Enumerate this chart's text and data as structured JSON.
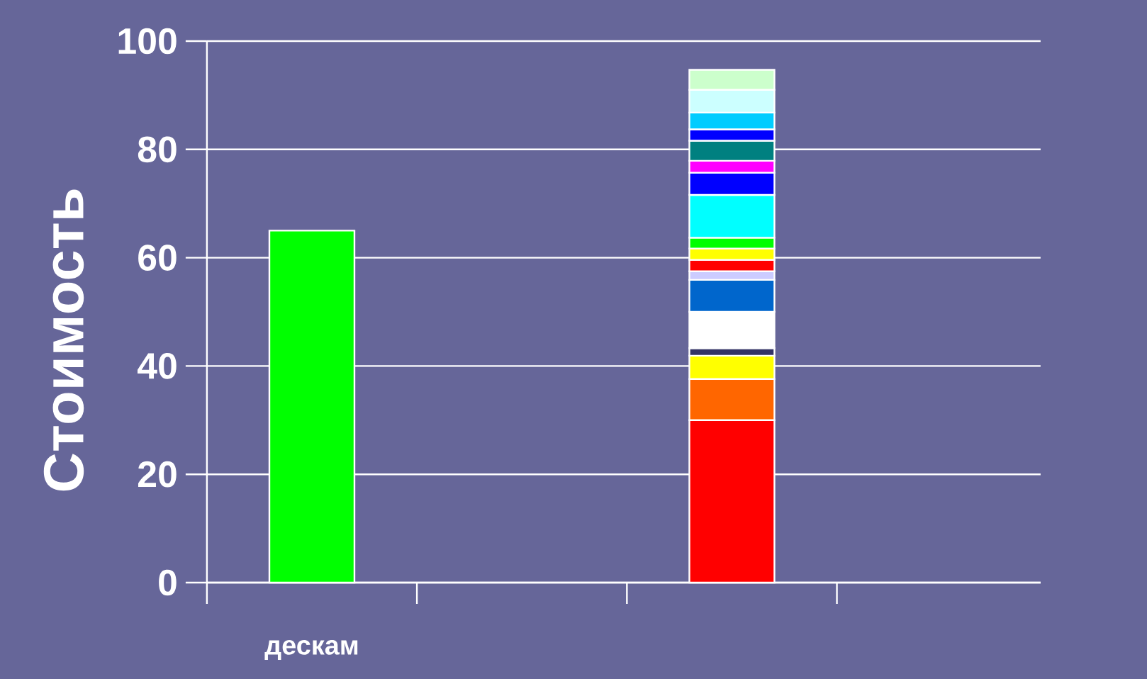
{
  "chart_data": {
    "type": "bar",
    "stacked": true,
    "ylabel": "Стоимость",
    "categories": [
      "дескам",
      null,
      null,
      null
    ],
    "ylim": [
      0,
      100
    ],
    "yticks": [
      0,
      20,
      40,
      60,
      80,
      100
    ],
    "grid": "y",
    "series": [
      {
        "color": "#00ff00",
        "values": [
          65,
          null,
          null,
          null
        ]
      },
      {
        "color": "#ff0000",
        "values": [
          null,
          null,
          30,
          null
        ]
      },
      {
        "color": "#ff6600",
        "values": [
          null,
          null,
          7.6,
          null
        ]
      },
      {
        "color": "#ffff00",
        "values": [
          null,
          null,
          4.3,
          null
        ]
      },
      {
        "color": "#333366",
        "values": [
          null,
          null,
          1.4,
          null
        ]
      },
      {
        "color": "#ffffff",
        "values": [
          null,
          null,
          6.7,
          null
        ]
      },
      {
        "color": "#0066cc",
        "values": [
          null,
          null,
          5.9,
          null
        ]
      },
      {
        "color": "#ccccff",
        "values": [
          null,
          null,
          1.6,
          null
        ]
      },
      {
        "color": "#ff0000",
        "values": [
          null,
          null,
          2.1,
          null
        ]
      },
      {
        "color": "#ffff00",
        "values": [
          null,
          null,
          2.1,
          null
        ]
      },
      {
        "color": "#00ff00",
        "values": [
          null,
          null,
          2,
          null
        ]
      },
      {
        "color": "#00ffff",
        "values": [
          null,
          null,
          7.9,
          null
        ]
      },
      {
        "color": "#0000ff",
        "values": [
          null,
          null,
          4.1,
          null
        ]
      },
      {
        "color": "#ff00ff",
        "values": [
          null,
          null,
          2.2,
          null
        ]
      },
      {
        "color": "#008080",
        "values": [
          null,
          null,
          3.7,
          null
        ]
      },
      {
        "color": "#0000ff",
        "values": [
          null,
          null,
          2.1,
          null
        ]
      },
      {
        "color": "#00ccff",
        "values": [
          null,
          null,
          3.1,
          null
        ]
      },
      {
        "color": "#ccffff",
        "values": [
          null,
          null,
          4.2,
          null
        ]
      },
      {
        "color": "#ccffcc",
        "values": [
          null,
          null,
          3.7,
          null
        ]
      }
    ]
  }
}
